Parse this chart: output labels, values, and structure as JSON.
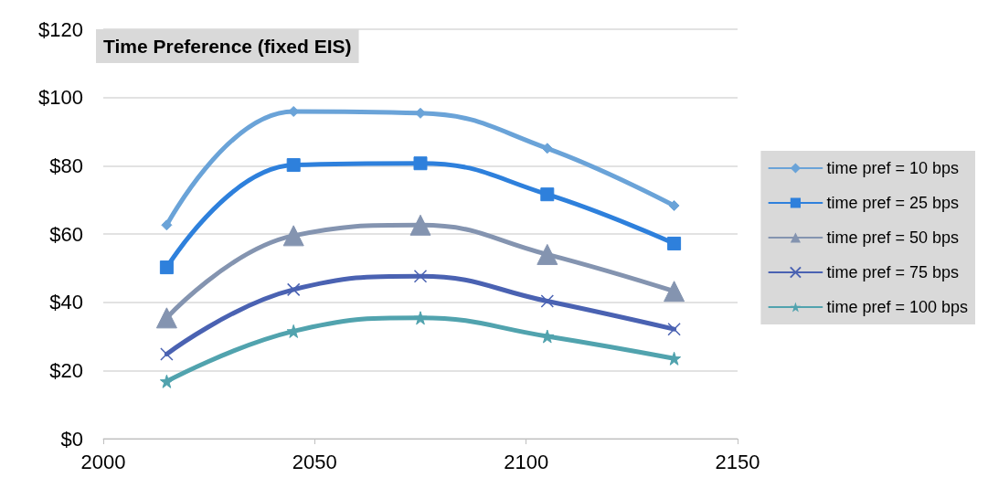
{
  "chart_data": {
    "type": "line",
    "title": "Time Preference (fixed EIS)",
    "x": [
      2015,
      2045,
      2075,
      2105,
      2135
    ],
    "series": [
      {
        "name": "time pref = 10 bps",
        "color": "#6aa3d8",
        "marker": "diamond",
        "values": [
          62.6,
          95.9,
          95.4,
          85.1,
          68.3
        ]
      },
      {
        "name": "time pref = 25 bps",
        "color": "#2e80dc",
        "marker": "square",
        "values": [
          50.2,
          80.2,
          80.7,
          71.6,
          57.2
        ]
      },
      {
        "name": "time pref = 50 bps",
        "color": "#8494b0",
        "marker": "triangle",
        "values": [
          35.4,
          59.5,
          62.6,
          54,
          43.2
        ]
      },
      {
        "name": "time pref = 75 bps",
        "color": "#4a62b2",
        "marker": "cross",
        "values": [
          24.8,
          43.7,
          47.6,
          40.3,
          32.1
        ]
      },
      {
        "name": "time pref = 100 bps",
        "color": "#51a3ae",
        "marker": "star",
        "values": [
          16.8,
          31.5,
          35.4,
          30,
          23.5
        ]
      }
    ],
    "xlim": [
      2000,
      2150
    ],
    "xticks": [
      2000,
      2050,
      2100,
      2150
    ],
    "ylim": [
      0,
      120
    ],
    "yticks": [
      {
        "value": 0,
        "label": "$0"
      },
      {
        "value": 20,
        "label": "$20"
      },
      {
        "value": 40,
        "label": "$40"
      },
      {
        "value": 60,
        "label": "$60"
      },
      {
        "value": 80,
        "label": "$80"
      },
      {
        "value": 100,
        "label": "$100"
      },
      {
        "value": 120,
        "label": "$120"
      }
    ],
    "grid": "y",
    "legend": "right",
    "line_style": "solid"
  }
}
